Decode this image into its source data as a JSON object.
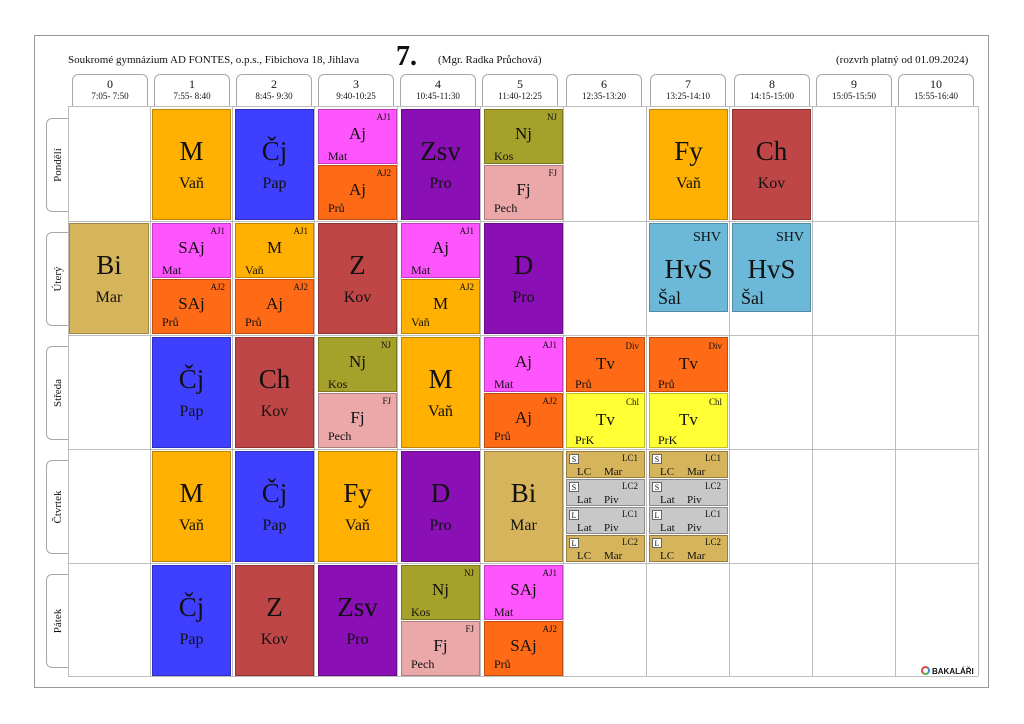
{
  "header": {
    "school": "Soukromé gymnázium AD FONTES, o.p.s., Fibichova 18, Jihlava",
    "class": "7.",
    "teacher": "(Mgr. Radka Průchová)",
    "valid_from": "(rozvrh platný od 01.09.2024)"
  },
  "periods": [
    {
      "num": "0",
      "time": "7:05- 7:50"
    },
    {
      "num": "1",
      "time": "7:55- 8:40"
    },
    {
      "num": "2",
      "time": "8:45- 9:30"
    },
    {
      "num": "3",
      "time": "9:40-10:25"
    },
    {
      "num": "4",
      "time": "10:45-11:30"
    },
    {
      "num": "5",
      "time": "11:40-12:25"
    },
    {
      "num": "6",
      "time": "12:35-13:20"
    },
    {
      "num": "7",
      "time": "13:25-14:10"
    },
    {
      "num": "8",
      "time": "14:15-15:00"
    },
    {
      "num": "9",
      "time": "15:05-15:50"
    },
    {
      "num": "10",
      "time": "15:55-16:40"
    }
  ],
  "days": [
    "Pondělí",
    "Úterý",
    "Středa",
    "Čtvrtek",
    "Pátek"
  ],
  "colors": {
    "M": "#ffb000",
    "Cj": "#3f3fff",
    "Aj1": "#ff55ff",
    "Aj2": "#ff6a16",
    "Zsv": "#8a0fb4",
    "Nj": "#a6a12a",
    "Fj": "#eba8a8",
    "Fy": "#ffb000",
    "Ch": "#bf4646",
    "Bi": "#d6b45c",
    "HvS": "#6cb8d8",
    "Z": "#bf4646",
    "D": "#8a0fb4",
    "TvDiv": "#ff6a16",
    "TvChl": "#ffff33",
    "LC": "#d6b45c",
    "Lat": "#c8c8c8"
  },
  "lessons": {
    "mon": {
      "p1": {
        "subject": "M",
        "teacher": "Vaň"
      },
      "p2": {
        "subject": "Čj",
        "teacher": "Pap"
      },
      "p3": {
        "top": {
          "subject": "Aj",
          "group": "AJ1",
          "teacher": "Mat"
        },
        "bottom": {
          "subject": "Aj",
          "group": "AJ2",
          "teacher": "Prů"
        }
      },
      "p4": {
        "subject": "Zsv",
        "teacher": "Pro"
      },
      "p5": {
        "top": {
          "subject": "Nj",
          "group": "NJ",
          "teacher": "Kos"
        },
        "bottom": {
          "subject": "Fj",
          "group": "FJ",
          "teacher": "Pech"
        }
      },
      "p7": {
        "subject": "Fy",
        "teacher": "Vaň"
      },
      "p8": {
        "subject": "Ch",
        "teacher": "Kov"
      }
    },
    "tue": {
      "p0": {
        "subject": "Bi",
        "teacher": "Mar"
      },
      "p1": {
        "top": {
          "subject": "SAj",
          "group": "AJ1",
          "teacher": "Mat"
        },
        "bottom": {
          "subject": "SAj",
          "group": "AJ2",
          "teacher": "Prů"
        }
      },
      "p2": {
        "top": {
          "subject": "M",
          "group": "AJ1",
          "teacher": "Vaň"
        },
        "bottom": {
          "subject": "Aj",
          "group": "AJ2",
          "teacher": "Prů"
        }
      },
      "p3": {
        "subject": "Z",
        "teacher": "Kov"
      },
      "p4": {
        "top": {
          "subject": "Aj",
          "group": "AJ1",
          "teacher": "Mat"
        },
        "bottom": {
          "subject": "M",
          "group": "AJ2",
          "teacher": "Vaň"
        }
      },
      "p5": {
        "subject": "D",
        "teacher": "Pro"
      },
      "p7": {
        "subject": "HvS",
        "group": "SHV",
        "teacher": "Šal"
      },
      "p8": {
        "subject": "HvS",
        "group": "SHV",
        "teacher": "Šal"
      }
    },
    "wed": {
      "p1": {
        "subject": "Čj",
        "teacher": "Pap"
      },
      "p2": {
        "subject": "Ch",
        "teacher": "Kov"
      },
      "p3": {
        "top": {
          "subject": "Nj",
          "group": "NJ",
          "teacher": "Kos"
        },
        "bottom": {
          "subject": "Fj",
          "group": "FJ",
          "teacher": "Pech"
        }
      },
      "p4": {
        "subject": "M",
        "teacher": "Vaň"
      },
      "p5": {
        "top": {
          "subject": "Aj",
          "group": "AJ1",
          "teacher": "Mat"
        },
        "bottom": {
          "subject": "Aj",
          "group": "AJ2",
          "teacher": "Prů"
        }
      },
      "p6": {
        "top": {
          "subject": "Tv",
          "group": "Div",
          "teacher": "Prů"
        },
        "bottom": {
          "subject": "Tv",
          "group": "Chl",
          "teacher": "PrK"
        }
      },
      "p7": {
        "top": {
          "subject": "Tv",
          "group": "Div",
          "teacher": "Prů"
        },
        "bottom": {
          "subject": "Tv",
          "group": "Chl",
          "teacher": "PrK"
        }
      }
    },
    "thu": {
      "p1": {
        "subject": "M",
        "teacher": "Vaň"
      },
      "p2": {
        "subject": "Čj",
        "teacher": "Pap"
      },
      "p3": {
        "subject": "Fy",
        "teacher": "Vaň"
      },
      "p4": {
        "subject": "D",
        "teacher": "Pro"
      },
      "p5": {
        "subject": "Bi",
        "teacher": "Mar"
      },
      "p6": [
        {
          "tag": "S",
          "group": "LC1",
          "subject": "LC",
          "teacher": "Mar"
        },
        {
          "tag": "S",
          "group": "LC2",
          "subject": "Lat",
          "teacher": "Piv"
        },
        {
          "tag": "L",
          "group": "LC1",
          "subject": "Lat",
          "teacher": "Piv"
        },
        {
          "tag": "L",
          "group": "LC2",
          "subject": "LC",
          "teacher": "Mar"
        }
      ],
      "p7": [
        {
          "tag": "S",
          "group": "LC1",
          "subject": "LC",
          "teacher": "Mar"
        },
        {
          "tag": "S",
          "group": "LC2",
          "subject": "Lat",
          "teacher": "Piv"
        },
        {
          "tag": "L",
          "group": "LC1",
          "subject": "Lat",
          "teacher": "Piv"
        },
        {
          "tag": "L",
          "group": "LC2",
          "subject": "LC",
          "teacher": "Mar"
        }
      ]
    },
    "fri": {
      "p1": {
        "subject": "Čj",
        "teacher": "Pap"
      },
      "p2": {
        "subject": "Z",
        "teacher": "Kov"
      },
      "p3": {
        "subject": "Zsv",
        "teacher": "Pro"
      },
      "p4": {
        "top": {
          "subject": "Nj",
          "group": "NJ",
          "teacher": "Kos"
        },
        "bottom": {
          "subject": "Fj",
          "group": "FJ",
          "teacher": "Pech"
        }
      },
      "p5": {
        "top": {
          "subject": "SAj",
          "group": "AJ1",
          "teacher": "Mat"
        },
        "bottom": {
          "subject": "SAj",
          "group": "AJ2",
          "teacher": "Prů"
        }
      }
    }
  },
  "footer": {
    "brand": "BAKALÁŘI"
  }
}
